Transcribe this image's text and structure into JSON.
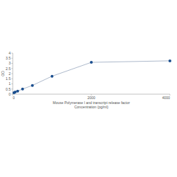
{
  "chart_data": {
    "type": "line",
    "x_label": "Mouse Polymerase I and transcript release factor Concentration (pg/ml)",
    "y_label": "OD",
    "x": [
      31.25,
      62.5,
      125,
      250,
      500,
      1000,
      2000,
      4000
    ],
    "series": [
      {
        "name": "OD",
        "color": "#1b4f8f",
        "values": [
          0.13,
          0.2,
          0.3,
          0.5,
          0.85,
          1.75,
          3.1,
          3.25
        ]
      }
    ],
    "marker": "circle",
    "xlim": [
      0,
      4000
    ],
    "xticks": [
      0,
      2000,
      4000
    ],
    "ylim": [
      0,
      4
    ],
    "yticks": [
      0,
      0.5,
      1,
      1.5,
      2,
      2.5,
      3,
      3.5,
      4
    ],
    "grid": false
  }
}
